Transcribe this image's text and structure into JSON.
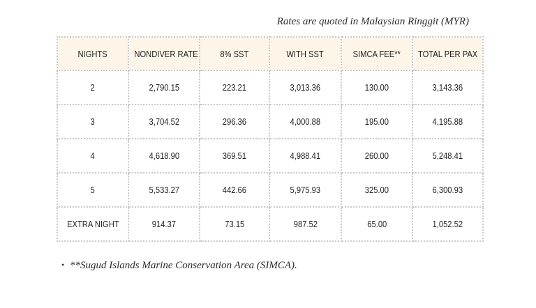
{
  "caption": "Rates are quoted in Malaysian Ringgit (MYR)",
  "table": {
    "headers": [
      "NIGHTS",
      "NONDIVER RATE",
      "8% SST",
      "WITH SST",
      "SIMCA FEE**",
      "TOTAL PER PAX"
    ],
    "rows": [
      [
        "2",
        "2,790.15",
        "223.21",
        "3,013.36",
        "130.00",
        "3,143.36"
      ],
      [
        "3",
        "3,704.52",
        "296.36",
        "4,000.88",
        "195.00",
        "4,195.88"
      ],
      [
        "4",
        "4,618.90",
        "369.51",
        "4,988.41",
        "260.00",
        "5,248.41"
      ],
      [
        "5",
        "5,533.27",
        "442.66",
        "5,975.93",
        "325.00",
        "6,300.93"
      ],
      [
        "EXTRA NIGHT",
        "914.37",
        "73.15",
        "987.52",
        "65.00",
        "1,052.52"
      ]
    ]
  },
  "footnote": {
    "bullet": "•",
    "text": "**Sugud Islands Marine Conservation Area (SIMCA)."
  }
}
